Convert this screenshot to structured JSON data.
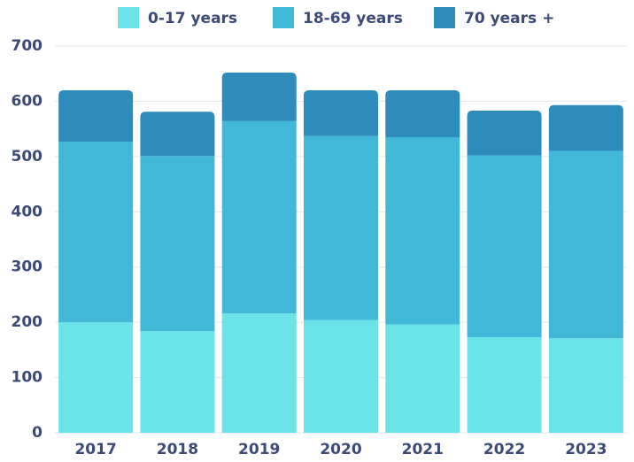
{
  "chart_data": {
    "type": "stacked_bar",
    "categories": [
      "2017",
      "2018",
      "2019",
      "2020",
      "2021",
      "2022",
      "2023"
    ],
    "series": [
      {
        "name": "0-17 years",
        "color": "#6ae4e8",
        "values": [
          200,
          184,
          216,
          204,
          196,
          173,
          171
        ]
      },
      {
        "name": "18-69 years",
        "color": "#42b8d8",
        "values": [
          327,
          317,
          348,
          333,
          339,
          329,
          339
        ]
      },
      {
        "name": "70 years +",
        "color": "#2e8cbc",
        "values": [
          93,
          80,
          88,
          83,
          85,
          81,
          83
        ]
      }
    ],
    "ylim": [
      0,
      700
    ],
    "yticks": [
      0,
      100,
      200,
      300,
      400,
      500,
      600,
      700
    ],
    "grid": true
  }
}
